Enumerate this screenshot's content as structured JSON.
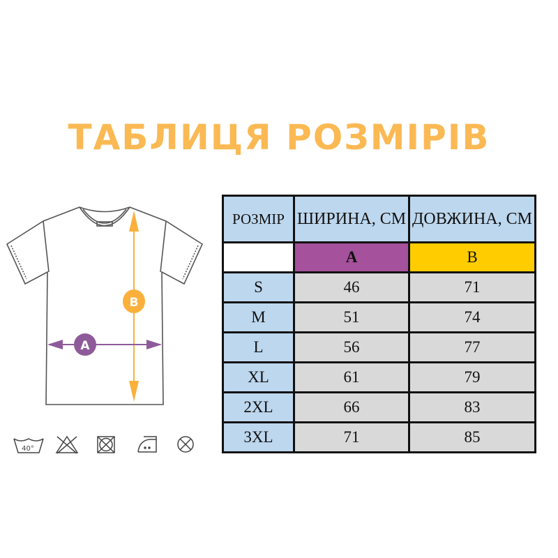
{
  "title": "ТАБЛИЦЯ РОЗМІРІВ",
  "diagram": {
    "labels": {
      "width": "A",
      "length": "B"
    },
    "colors": {
      "width": "#8f5a9a",
      "length": "#fbb03b"
    },
    "care_icons": [
      "wash-40-icon",
      "no-bleach-icon",
      "no-tumble-dry-icon",
      "iron-medium-icon",
      "no-dry-clean-icon"
    ],
    "wash_temp": "40°"
  },
  "table": {
    "headers": [
      "РОЗМІР",
      "ШИРИНА, СМ",
      "ДОВЖИНА, СМ"
    ],
    "codes": [
      "",
      "A",
      "B"
    ],
    "code_colors": {
      "A": "#a5519b",
      "B": "#ffcc00"
    },
    "rows": [
      {
        "size": "S",
        "width": "46",
        "length": "71"
      },
      {
        "size": "M",
        "width": "51",
        "length": "74"
      },
      {
        "size": "L",
        "width": "56",
        "length": "77"
      },
      {
        "size": "XL",
        "width": "61",
        "length": "79"
      },
      {
        "size": "2XL",
        "width": "66",
        "length": "83"
      },
      {
        "size": "3XL",
        "width": "71",
        "length": "85"
      }
    ]
  }
}
